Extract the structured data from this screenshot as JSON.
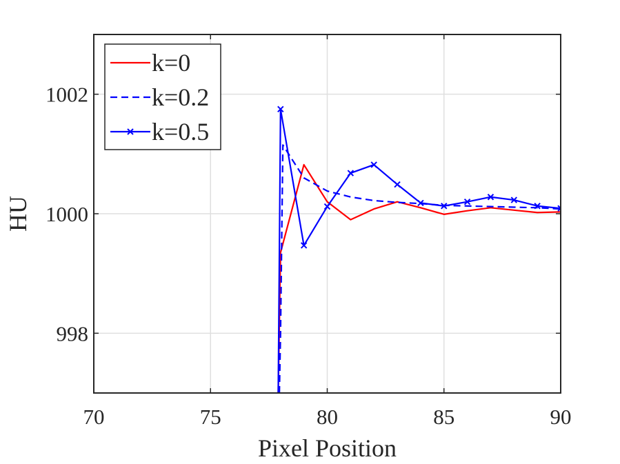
{
  "chart_data": {
    "type": "line",
    "title": "",
    "xlabel": "Pixel Position",
    "ylabel": "HU",
    "xlim": [
      70,
      90
    ],
    "ylim": [
      997,
      1003
    ],
    "xticks": [
      70,
      75,
      80,
      85,
      90
    ],
    "yticks": [
      998,
      1000,
      1002
    ],
    "grid": true,
    "legend_position": "top-left",
    "series": [
      {
        "name": "k=0",
        "color": "#ff0000",
        "dash": "solid",
        "marker": "none",
        "points": [
          [
            77.9,
            997
          ],
          [
            78,
            999.35
          ],
          [
            79,
            1000.82
          ],
          [
            80,
            1000.2
          ],
          [
            81,
            999.9
          ],
          [
            82,
            1000.08
          ],
          [
            83,
            1000.2
          ],
          [
            84,
            1000.1
          ],
          [
            85,
            999.99
          ],
          [
            86,
            1000.05
          ],
          [
            87,
            1000.1
          ],
          [
            88,
            1000.06
          ],
          [
            89,
            1000.02
          ],
          [
            90,
            1000.03
          ]
        ]
      },
      {
        "name": "k=0.2",
        "color": "#0000ff",
        "dash": "dashed",
        "marker": "none",
        "points": [
          [
            77.95,
            997
          ],
          [
            78,
            998.0
          ],
          [
            78.1,
            1001.15
          ],
          [
            79,
            1000.6
          ],
          [
            80,
            1000.38
          ],
          [
            81,
            1000.28
          ],
          [
            82,
            1000.22
          ],
          [
            83,
            1000.19
          ],
          [
            84,
            1000.17
          ],
          [
            85,
            1000.14
          ],
          [
            86,
            1000.13
          ],
          [
            87,
            1000.12
          ],
          [
            88,
            1000.11
          ],
          [
            89,
            1000.1
          ],
          [
            90,
            1000.08
          ]
        ]
      },
      {
        "name": "k=0.5",
        "color": "#0000ff",
        "dash": "solid",
        "marker": "x",
        "points": [
          [
            77.9,
            997
          ],
          [
            78,
            1001.75
          ],
          [
            79,
            999.47
          ],
          [
            80,
            1000.12
          ],
          [
            81,
            1000.68
          ],
          [
            82,
            1000.82
          ],
          [
            83,
            1000.49
          ],
          [
            84,
            1000.18
          ],
          [
            85,
            1000.13
          ],
          [
            86,
            1000.2
          ],
          [
            87,
            1000.28
          ],
          [
            88,
            1000.23
          ],
          [
            89,
            1000.13
          ],
          [
            90,
            1000.09
          ]
        ],
        "marker_x": [
          78,
          79,
          80,
          81,
          82,
          83,
          84,
          85,
          86,
          87,
          88,
          89,
          90
        ]
      }
    ]
  }
}
